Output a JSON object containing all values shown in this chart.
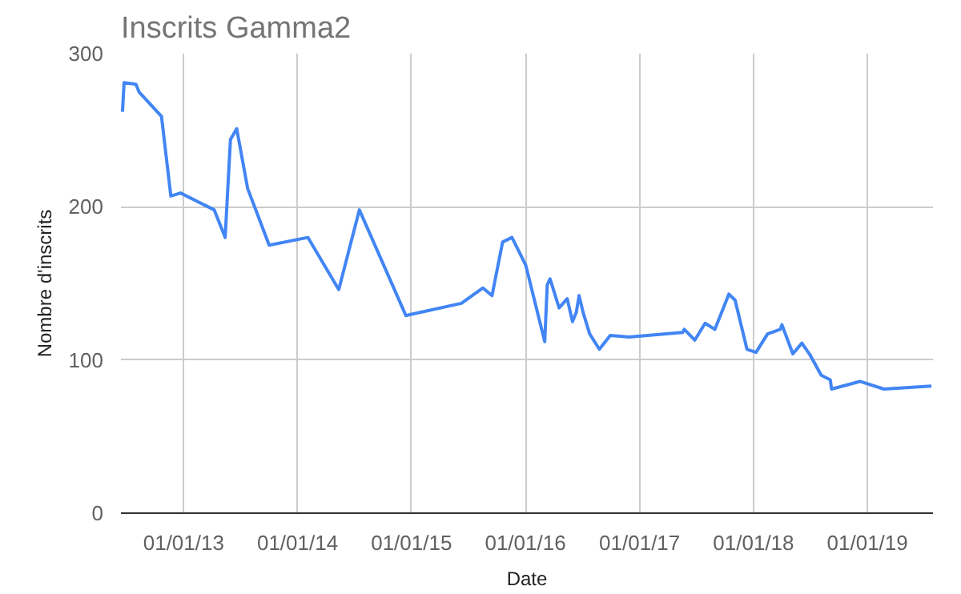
{
  "chart_data": {
    "type": "line",
    "title": "Inscrits Gamma2",
    "xlabel": "Date",
    "ylabel": "Nombre d'inscrits",
    "x": [
      "2012-06-19",
      "2012-06-24",
      "2012-08-01",
      "2012-08-11",
      "2012-10-22",
      "2012-11-21",
      "2012-12-22",
      "2013-04-09",
      "2013-05-14",
      "2013-05-31",
      "2013-06-20",
      "2013-07-25",
      "2013-10-02",
      "2014-02-03",
      "2014-05-13",
      "2014-07-18",
      "2014-12-14",
      "2015-06-10",
      "2015-08-18",
      "2015-09-16",
      "2015-10-20",
      "2015-11-19",
      "2016-01-02",
      "2016-03-03",
      "2016-03-11",
      "2016-03-20",
      "2016-04-18",
      "2016-05-14",
      "2016-05-31",
      "2016-06-12",
      "2016-06-21",
      "2016-07-04",
      "2016-07-25",
      "2016-08-25",
      "2016-09-29",
      "2016-11-28",
      "2017-05-19",
      "2017-05-24",
      "2017-06-27",
      "2017-07-30",
      "2017-08-30",
      "2017-10-14",
      "2017-11-03",
      "2017-12-11",
      "2018-01-09",
      "2018-02-15",
      "2018-03-28",
      "2018-04-02",
      "2018-05-07",
      "2018-06-05",
      "2018-07-02",
      "2018-08-06",
      "2018-09-04",
      "2018-09-08",
      "2018-12-08",
      "2019-02-23",
      "2019-07-25"
    ],
    "series": [
      {
        "color": "#4285f4",
        "values": [
          262,
          281,
          280,
          275,
          259,
          207,
          209,
          198,
          180,
          244,
          251,
          212,
          175,
          180,
          146,
          198,
          129,
          137,
          147,
          142,
          177,
          180,
          162,
          112,
          149,
          153,
          134,
          140,
          125,
          131,
          142,
          131,
          117,
          107,
          116,
          115,
          118,
          120,
          113,
          124,
          120,
          143,
          139,
          107,
          105,
          117,
          120,
          123,
          104,
          111,
          103,
          90,
          87,
          81,
          86,
          81,
          83
        ]
      }
    ],
    "xlim": [
      "2012-06-14",
      "2019-07-30"
    ],
    "xticks": [
      {
        "value": "2013-01-01",
        "label": "01/01/13"
      },
      {
        "value": "2014-01-01",
        "label": "01/01/14"
      },
      {
        "value": "2015-01-01",
        "label": "01/01/15"
      },
      {
        "value": "2016-01-01",
        "label": "01/01/16"
      },
      {
        "value": "2017-01-01",
        "label": "01/01/17"
      },
      {
        "value": "2018-01-01",
        "label": "01/01/18"
      },
      {
        "value": "2019-01-01",
        "label": "01/01/19"
      }
    ],
    "ylim": [
      0,
      300
    ],
    "yticks": [
      0,
      100,
      200,
      300
    ],
    "grid": true,
    "marker": "none",
    "line_style": "solid"
  }
}
